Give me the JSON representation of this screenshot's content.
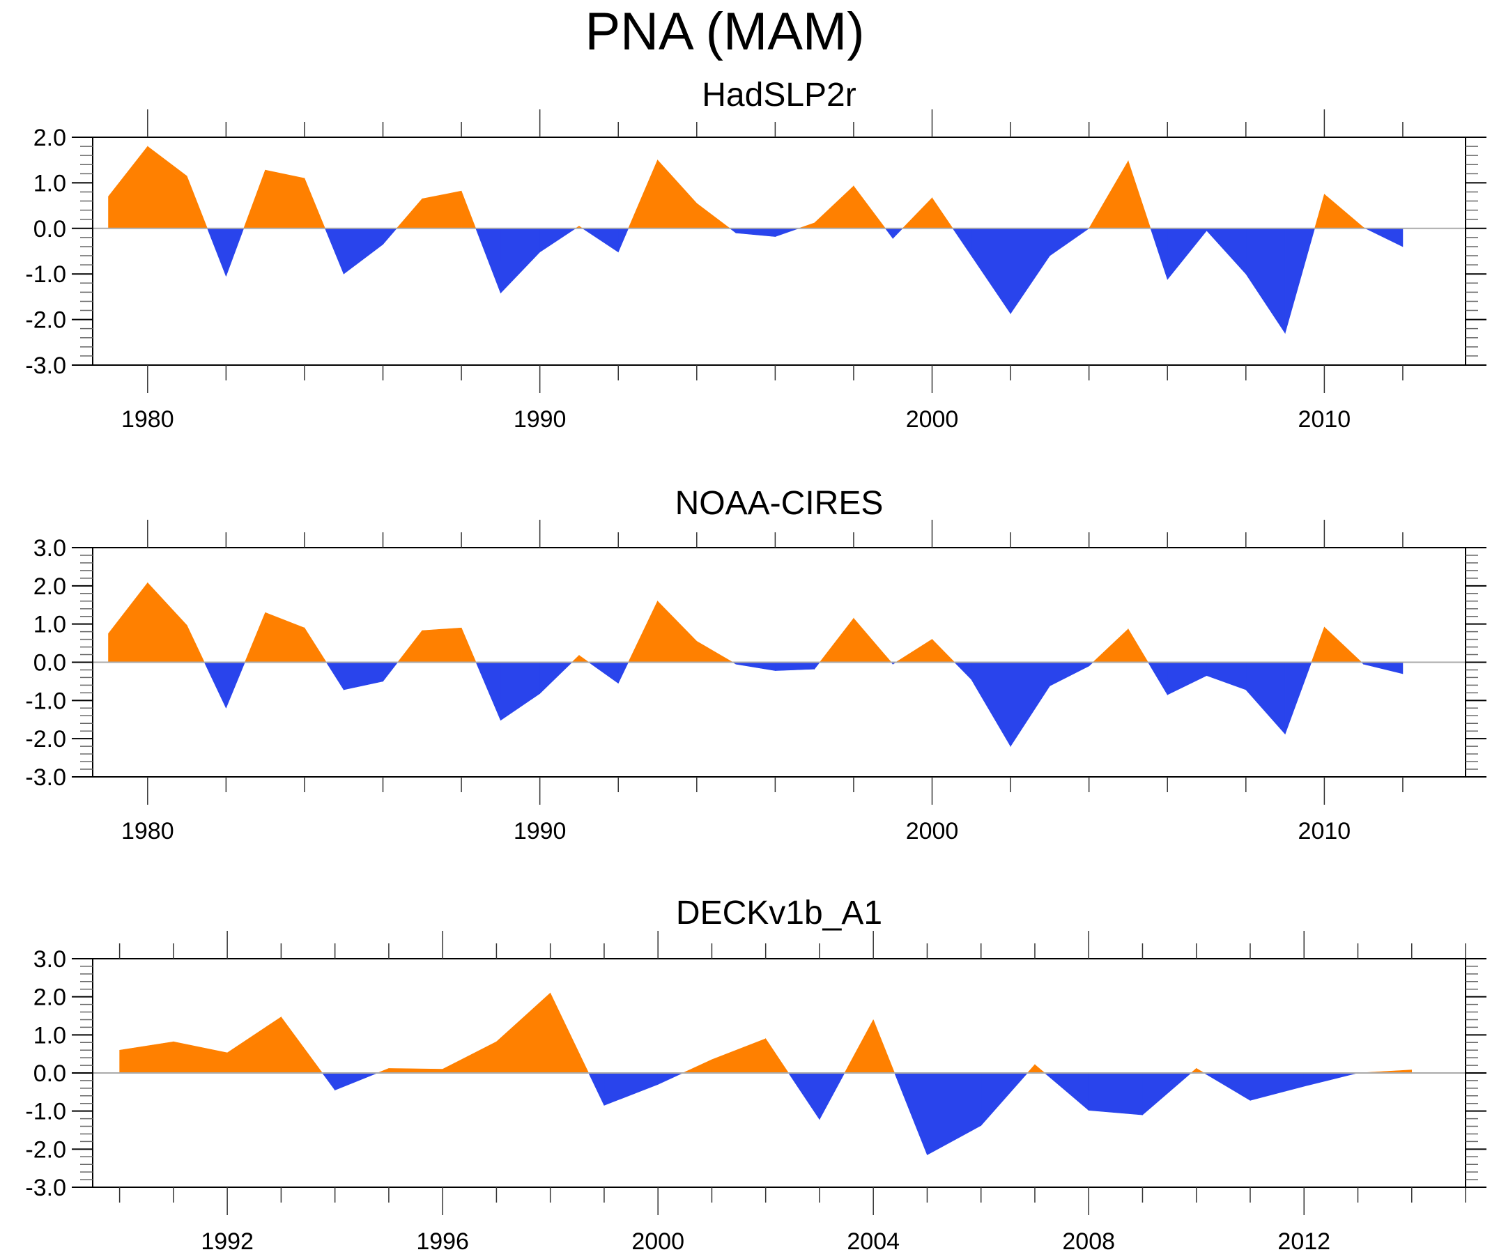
{
  "title": "PNA (MAM)",
  "colors": {
    "positive": "#ff8000",
    "negative": "#2944ec",
    "axis": "#000000",
    "zero_line": "#aaaaaa"
  },
  "chart_data": [
    {
      "type": "area",
      "title": "HadSLP2r",
      "xlabel": "",
      "ylabel": "",
      "xlim": [
        1978.6,
        2013.6
      ],
      "ylim": [
        -3.0,
        2.0
      ],
      "x_major_ticks": [
        1980,
        1990,
        2000,
        2010
      ],
      "x_minor_step": 2,
      "y_ticks": [
        2.0,
        1.0,
        0.0,
        -1.0,
        -2.0,
        -3.0
      ],
      "y_tick_labels": [
        "2.0",
        "1.0",
        "0.0",
        "-1.0",
        "-2.0",
        "-3.0"
      ],
      "grid": false,
      "x": [
        1979,
        1980,
        1981,
        1982,
        1983,
        1984,
        1985,
        1986,
        1987,
        1988,
        1989,
        1990,
        1991,
        1992,
        1993,
        1994,
        1995,
        1996,
        1997,
        1998,
        1999,
        2000,
        2001,
        2002,
        2003,
        2004,
        2005,
        2006,
        2007,
        2008,
        2009,
        2010,
        2011,
        2012
      ],
      "values": [
        0.7,
        1.8,
        1.15,
        -1.05,
        1.28,
        1.1,
        -1.0,
        -0.35,
        0.65,
        0.82,
        -1.42,
        -0.52,
        0.05,
        -0.52,
        1.5,
        0.55,
        -0.1,
        -0.18,
        0.12,
        0.93,
        -0.22,
        0.67,
        -0.6,
        -1.87,
        -0.6,
        0.0,
        1.48,
        -1.12,
        -0.05,
        -1.0,
        -2.3,
        0.75,
        0.02,
        -0.4
      ]
    },
    {
      "type": "area",
      "title": "NOAA-CIRES",
      "xlabel": "",
      "ylabel": "",
      "xlim": [
        1978.6,
        2013.6
      ],
      "ylim": [
        -3.0,
        3.0
      ],
      "x_major_ticks": [
        1980,
        1990,
        2000,
        2010
      ],
      "x_minor_step": 2,
      "y_ticks": [
        3.0,
        2.0,
        1.0,
        0.0,
        -1.0,
        -2.0,
        -3.0
      ],
      "y_tick_labels": [
        "3.0",
        "2.0",
        "1.0",
        "0.0",
        "-1.0",
        "-2.0",
        "-3.0"
      ],
      "grid": false,
      "x": [
        1979,
        1980,
        1981,
        1982,
        1983,
        1984,
        1985,
        1986,
        1987,
        1988,
        1989,
        1990,
        1991,
        1992,
        1993,
        1994,
        1995,
        1996,
        1997,
        1998,
        1999,
        2000,
        2001,
        2002,
        2003,
        2004,
        2005,
        2006,
        2007,
        2008,
        2009,
        2010,
        2011,
        2012
      ],
      "values": [
        0.75,
        2.08,
        0.97,
        -1.2,
        1.3,
        0.9,
        -0.72,
        -0.5,
        0.83,
        0.9,
        -1.52,
        -0.82,
        0.18,
        -0.55,
        1.6,
        0.55,
        -0.05,
        -0.22,
        -0.18,
        1.15,
        -0.05,
        0.6,
        -0.45,
        -2.2,
        -0.62,
        -0.1,
        0.87,
        -0.85,
        -0.35,
        -0.72,
        -1.88,
        0.92,
        -0.05,
        -0.3
      ]
    },
    {
      "type": "area",
      "title": "DECKv1b_A1",
      "xlabel": "",
      "ylabel": "",
      "xlim": [
        1989.5,
        2015.0
      ],
      "ylim": [
        -3.0,
        3.0
      ],
      "x_major_ticks": [
        1992,
        1996,
        2000,
        2004,
        2008,
        2012
      ],
      "x_minor_step": 1,
      "y_ticks": [
        3.0,
        2.0,
        1.0,
        0.0,
        -1.0,
        -2.0,
        -3.0
      ],
      "y_tick_labels": [
        "3.0",
        "2.0",
        "1.0",
        "0.0",
        "-1.0",
        "-2.0",
        "-3.0"
      ],
      "grid": false,
      "x": [
        1990,
        1991,
        1992,
        1993,
        1994,
        1995,
        1996,
        1997,
        1998,
        1999,
        2000,
        2001,
        2002,
        2003,
        2004,
        2005,
        2006,
        2007,
        2008,
        2009,
        2010,
        2011,
        2012,
        2013,
        2014
      ],
      "values": [
        0.6,
        0.82,
        0.53,
        1.47,
        -0.45,
        0.12,
        0.1,
        0.82,
        2.1,
        -0.85,
        -0.3,
        0.35,
        0.9,
        -1.22,
        1.4,
        -2.15,
        -1.38,
        0.22,
        -0.98,
        -1.1,
        0.12,
        -0.72,
        -0.35,
        0.0,
        0.08
      ]
    }
  ]
}
